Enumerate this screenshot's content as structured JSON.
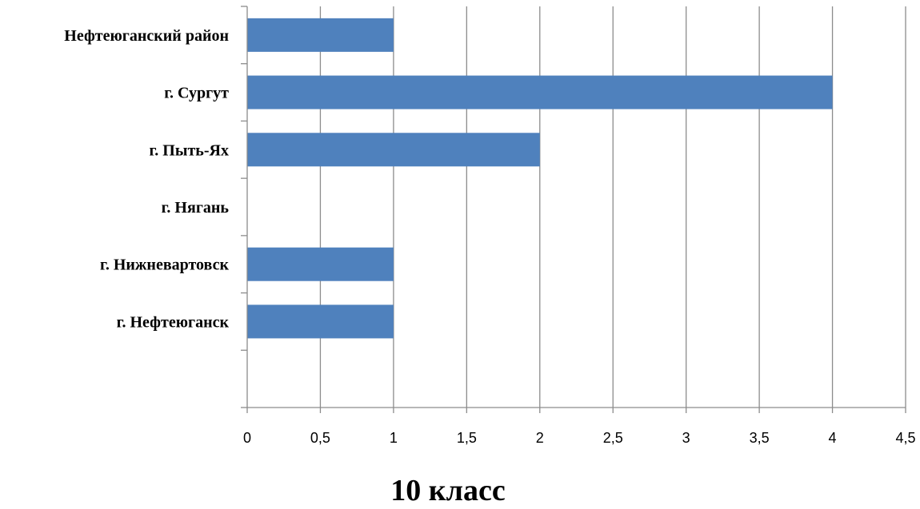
{
  "chart_data": {
    "type": "bar",
    "orientation": "horizontal",
    "title": "10 класс",
    "xlabel": "",
    "ylabel": "",
    "categories": [
      "Нефтеюганский район",
      "г. Сургут",
      "г. Пыть-Ях",
      "г. Нягань",
      "г. Нижневартовск",
      "г. Нефтеюганск"
    ],
    "series": [
      {
        "values": [
          1,
          4,
          2,
          0,
          1,
          1
        ]
      }
    ],
    "xlim": [
      0,
      4.5
    ],
    "x_ticks": [
      "0",
      "0,5",
      "1",
      "1,5",
      "2",
      "2,5",
      "3",
      "3,5",
      "4",
      "4,5"
    ],
    "grid": "vertical",
    "legend": "none",
    "colors": {
      "bar": "#4F81BD",
      "grid": "#8C8C8C",
      "axis": "#8C8C8C"
    }
  }
}
